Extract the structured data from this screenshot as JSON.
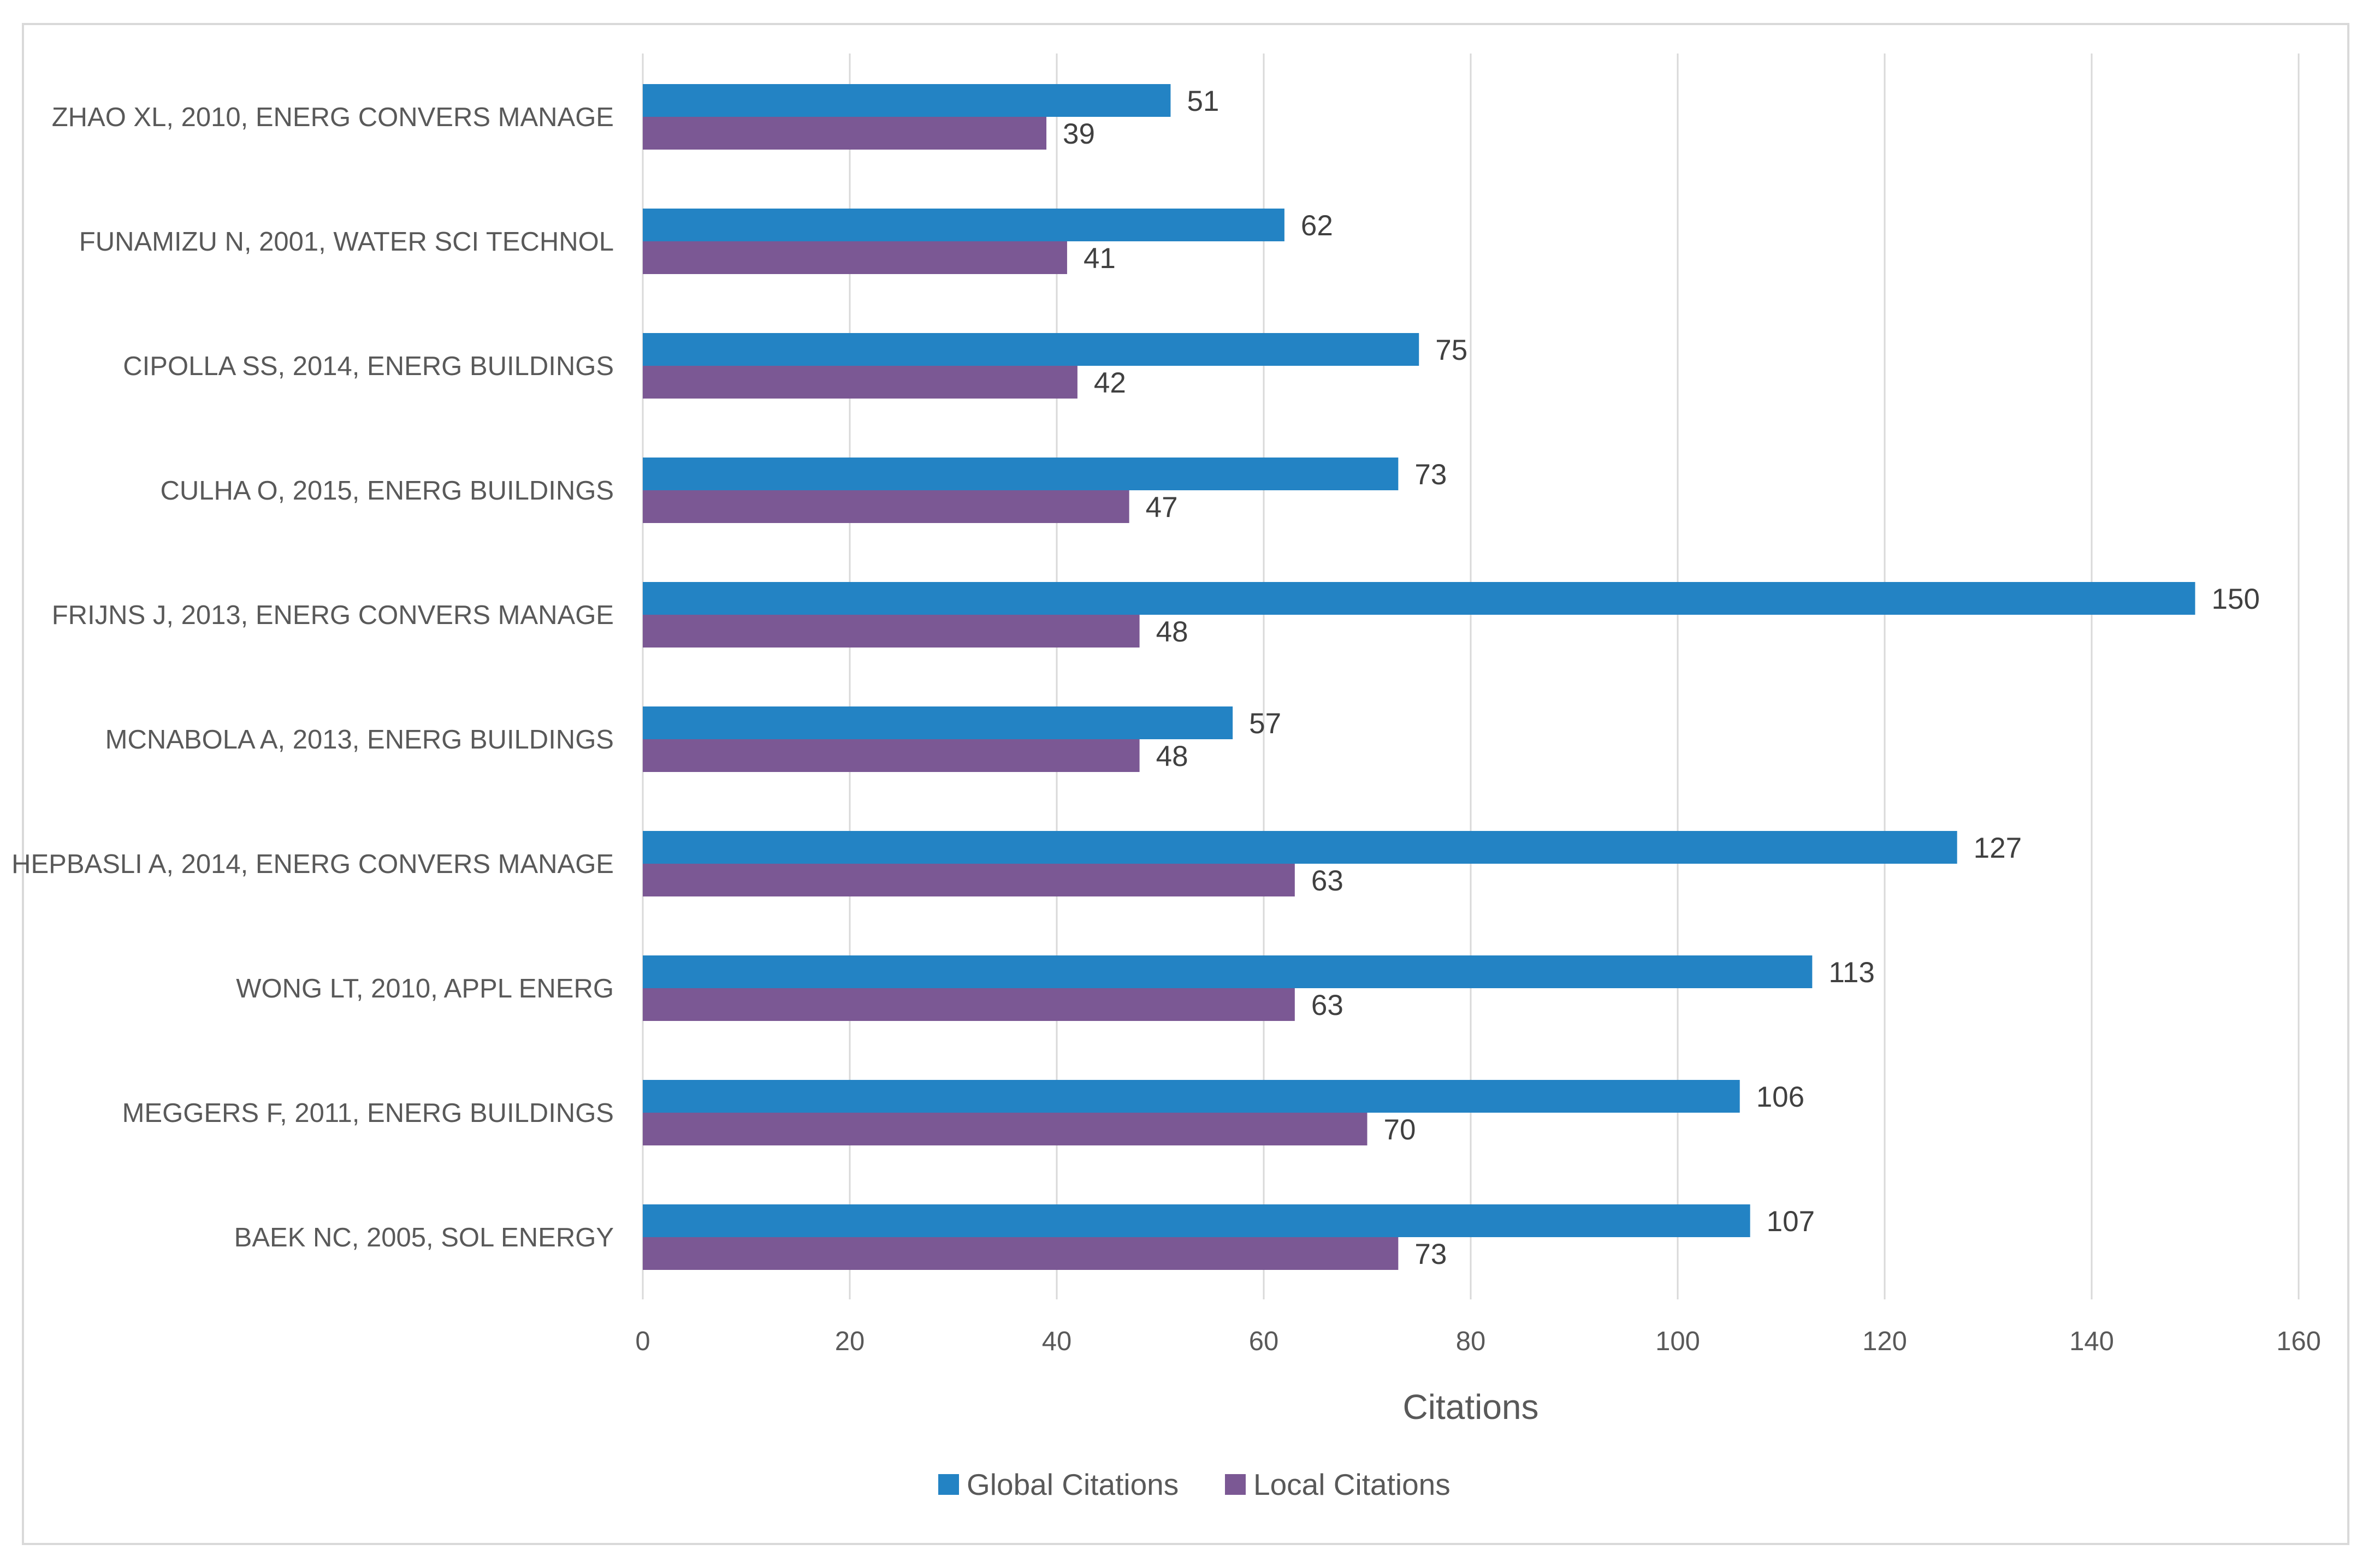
{
  "chart_data": {
    "type": "bar",
    "orientation": "horizontal",
    "title": "",
    "xlabel": "Citations",
    "ylabel": "",
    "xlim": [
      0,
      160
    ],
    "xticks": [
      0,
      20,
      40,
      60,
      80,
      100,
      120,
      140,
      160
    ],
    "grid": true,
    "legend_position": "bottom",
    "categories": [
      "ZHAO XL, 2010, ENERG CONVERS MANAGE",
      "FUNAMIZU N, 2001, WATER SCI TECHNOL",
      "CIPOLLA SS, 2014, ENERG BUILDINGS",
      "CULHA O, 2015, ENERG BUILDINGS",
      "FRIJNS J, 2013, ENERG CONVERS MANAGE",
      "MCNABOLA A, 2013, ENERG BUILDINGS",
      "HEPBASLI A, 2014, ENERG CONVERS MANAGE",
      "WONG LT, 2010, APPL ENERG",
      "MEGGERS F, 2011, ENERG BUILDINGS",
      "BAEK NC, 2005, SOL ENERGY"
    ],
    "series": [
      {
        "name": "Global Citations",
        "color": "#2383c4",
        "values": [
          51,
          62,
          75,
          73,
          150,
          57,
          127,
          113,
          106,
          107
        ]
      },
      {
        "name": "Local Citations",
        "color": "#7b5894",
        "values": [
          39,
          41,
          42,
          47,
          48,
          48,
          63,
          63,
          70,
          73
        ]
      }
    ]
  }
}
